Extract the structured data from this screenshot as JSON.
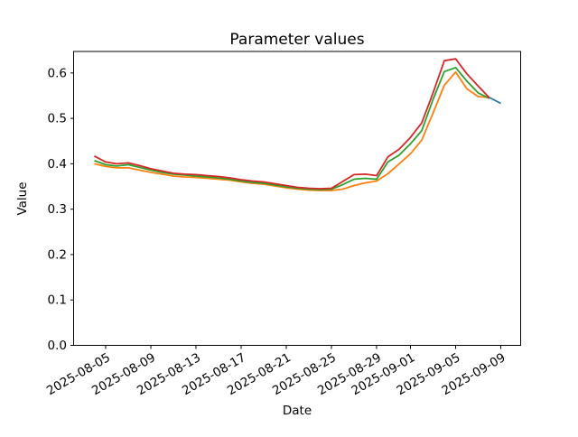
{
  "chart_data": {
    "type": "line",
    "title": "Parameter values",
    "xlabel": "Date",
    "ylabel": "Value",
    "grid": false,
    "legend": "none",
    "ylim": [
      0.0,
      0.646
    ],
    "y_ticks": [
      0.0,
      0.1,
      0.2,
      0.3,
      0.4,
      0.5,
      0.6
    ],
    "x_start_day_offset": 0,
    "xlim_days": [
      -1.8,
      37.7
    ],
    "x_ticks": [
      {
        "label": "2025-08-05",
        "day": 1
      },
      {
        "label": "2025-08-09",
        "day": 5
      },
      {
        "label": "2025-08-13",
        "day": 9
      },
      {
        "label": "2025-08-17",
        "day": 13
      },
      {
        "label": "2025-08-21",
        "day": 17
      },
      {
        "label": "2025-08-25",
        "day": 21
      },
      {
        "label": "2025-08-29",
        "day": 25
      },
      {
        "label": "2025-09-01",
        "day": 28
      },
      {
        "label": "2025-09-05",
        "day": 32
      },
      {
        "label": "2025-09-09",
        "day": 36
      }
    ],
    "series": [
      {
        "name": "blue",
        "color": "#1f77b4",
        "start_day": 35,
        "values": [
          0.546,
          0.533
        ]
      },
      {
        "name": "orange",
        "color": "#ff7f0e",
        "start_day": 0,
        "values": [
          0.4,
          0.394,
          0.391,
          0.391,
          0.386,
          0.381,
          0.377,
          0.373,
          0.371,
          0.37,
          0.368,
          0.366,
          0.364,
          0.36,
          0.357,
          0.355,
          0.351,
          0.347,
          0.344,
          0.342,
          0.341,
          0.341,
          0.344,
          0.352,
          0.358,
          0.362,
          0.378,
          0.4,
          0.422,
          0.452,
          0.512,
          0.573,
          0.602,
          0.565,
          0.548,
          0.546
        ]
      },
      {
        "name": "green",
        "color": "#2ca02c",
        "start_day": 0,
        "values": [
          0.407,
          0.398,
          0.395,
          0.398,
          0.392,
          0.386,
          0.381,
          0.377,
          0.375,
          0.373,
          0.371,
          0.369,
          0.366,
          0.362,
          0.359,
          0.357,
          0.353,
          0.349,
          0.346,
          0.344,
          0.343,
          0.344,
          0.354,
          0.366,
          0.368,
          0.366,
          0.404,
          0.419,
          0.444,
          0.473,
          0.542,
          0.603,
          0.612,
          0.582,
          0.556,
          0.544
        ]
      },
      {
        "name": "red",
        "color": "#d62728",
        "start_day": 0,
        "values": [
          0.417,
          0.404,
          0.4,
          0.402,
          0.396,
          0.389,
          0.384,
          0.379,
          0.377,
          0.376,
          0.374,
          0.372,
          0.369,
          0.365,
          0.362,
          0.36,
          0.356,
          0.352,
          0.348,
          0.346,
          0.345,
          0.346,
          0.361,
          0.376,
          0.377,
          0.374,
          0.415,
          0.432,
          0.458,
          0.49,
          0.556,
          0.627,
          0.631,
          0.598,
          0.571,
          0.545
        ]
      }
    ]
  }
}
